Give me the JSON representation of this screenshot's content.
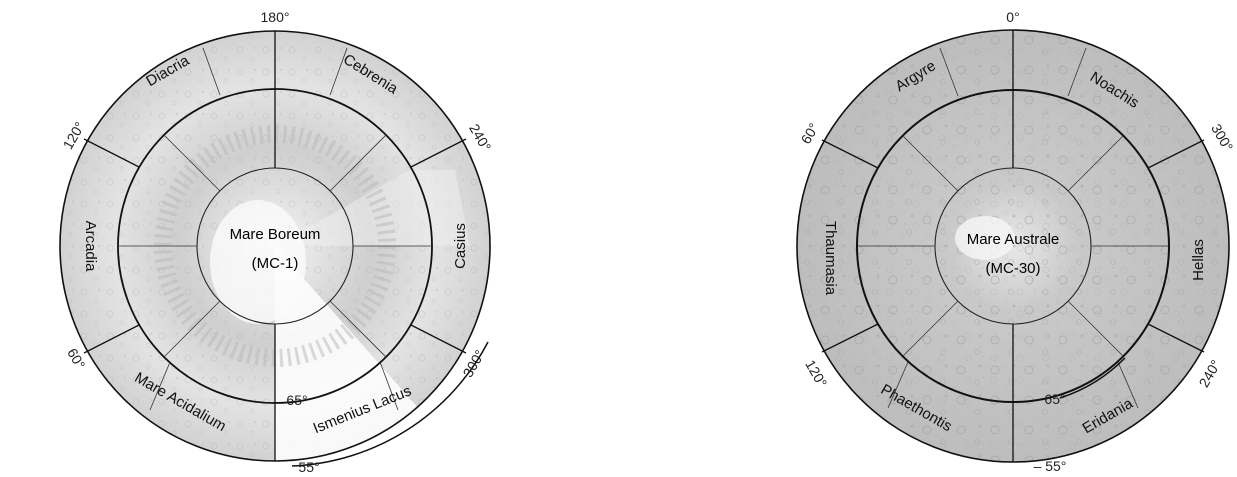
{
  "north_map": {
    "center": [
      "Mare Boreum",
      "(MC-1)"
    ],
    "degree_labels": {
      "top": "180°",
      "upper_left": "120°",
      "upper_right": "240°",
      "lower_left": "60°",
      "lower_right": "300°",
      "inner_ring": "65°",
      "outer_ring": "55°"
    },
    "regions": {
      "top_left": "Diacria",
      "top_right": "Cebrenia",
      "left": "Arcadia",
      "right": "Casius",
      "bottom_left": "Mare Acidalium",
      "bottom_right": "Ismenius Lacus"
    }
  },
  "south_map": {
    "center": [
      "Mare Australe",
      "(MC-30)"
    ],
    "degree_labels": {
      "top": "0°",
      "upper_left": "60°",
      "upper_right": "300°",
      "lower_left": "120°",
      "lower_right": "240°",
      "inner_ring": "65°",
      "outer_ring": "– 55°"
    },
    "regions": {
      "top_left": "Argyre",
      "top_right": "Noachis",
      "left": "Thaumasia",
      "right": "Hellas",
      "bottom_left": "Phaethontis",
      "bottom_right": "Eridania"
    }
  }
}
